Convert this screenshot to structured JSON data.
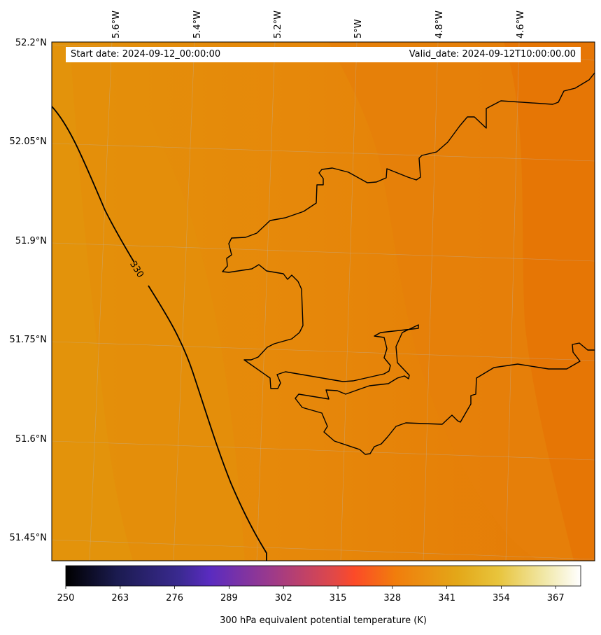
{
  "map": {
    "start_label": "Start date: 2024-09-12_00:00:00",
    "valid_label": "Valid_date: 2024-09-12T10:00:00.00",
    "lon_ticks": [
      "5.6°W",
      "5.4°W",
      "5.2°W",
      "5°W",
      "4.8°W",
      "4.6°W"
    ],
    "lat_ticks": [
      "52.2°N",
      "52.05°N",
      "51.9°N",
      "51.75°N",
      "51.6°N",
      "51.45°N"
    ],
    "contour_label": "330",
    "colors": {
      "field_west": "#e3900a",
      "field_mid": "#e6850a",
      "field_east": "#e57a06",
      "coastline": "#000000",
      "contour": "#000000"
    }
  },
  "colorbar": {
    "title": "300 hPa equivalent potential temperature (K)",
    "tick_labels": [
      "250",
      "263",
      "276",
      "289",
      "302",
      "315",
      "328",
      "341",
      "354",
      "367"
    ],
    "colormap": "CMRmap",
    "range": [
      250,
      373
    ]
  }
}
